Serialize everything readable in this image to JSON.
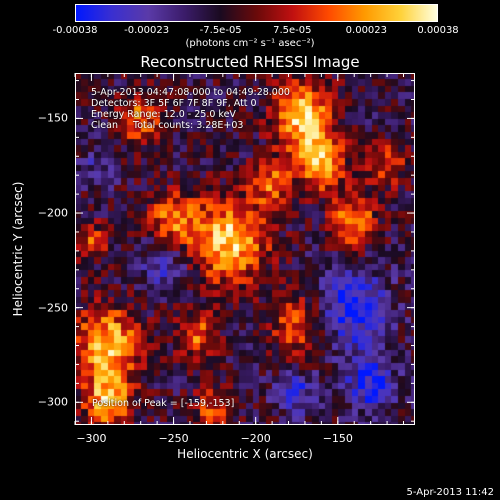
{
  "colorbar": {
    "ticks": [
      "-0.00038",
      "-0.00023",
      "-7.5e-05",
      "7.5e-05",
      "0.00023",
      "0.00038"
    ],
    "tick_values": [
      -0.00038,
      -0.00023,
      -7.5e-05,
      7.5e-05,
      0.00023,
      0.00038
    ],
    "range": [
      -0.00038,
      0.00038
    ],
    "units_label": "(photons cm⁻² s⁻¹ asec⁻²)"
  },
  "chart_data": {
    "type": "heatmap",
    "title": "Reconstructed RHESSI Image",
    "xlabel": "Heliocentric X (arcsec)",
    "ylabel": "Heliocentric Y (arcsec)",
    "xlim": [
      -310,
      -103
    ],
    "ylim": [
      -312,
      -126
    ],
    "xticks": [
      "−300",
      "−250",
      "−200",
      "−150"
    ],
    "xtick_values": [
      -300,
      -250,
      -200,
      -150
    ],
    "yticks": [
      "−150",
      "−200",
      "−250",
      "−300"
    ],
    "ytick_values": [
      -150,
      -200,
      -250,
      -300
    ],
    "peak_position": [
      -159,
      -153
    ],
    "colormap_stops": [
      "#0018ff",
      "#3a2fd0",
      "#5a3aa8",
      "#3b1c6a",
      "#1a0a20",
      "#6a0a0a",
      "#c01010",
      "#ff4a00",
      "#ff9a00",
      "#ffd23a",
      "#ffffe0"
    ]
  },
  "annotations": {
    "time_range": "5-Apr-2013 04:47:08.000 to 04:49:28.000",
    "detectors": "Detectors: 3F 5F 6F 7F 8F 9F, Att 0",
    "energy": "Energy Range: 12.0 - 25.0 keV",
    "clean": "Clean     Total counts: 3.28E+03",
    "peak": "Position of Peak = [-159,-153]"
  },
  "datestamp": "5-Apr-2013 11:42"
}
